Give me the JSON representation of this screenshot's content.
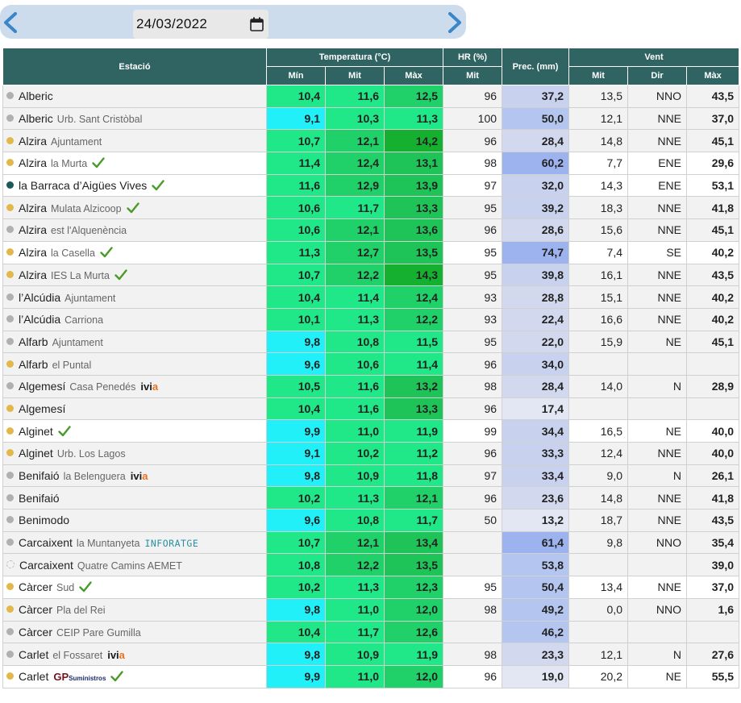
{
  "date_nav": {
    "date": "24/03/2022",
    "prev_icon": "chevron-left-icon",
    "next_icon": "chevron-right-icon",
    "calendar_icon": "calendar-icon"
  },
  "headers": {
    "station": "Estació",
    "temperature": "Temperatura (°C)",
    "hr": "HR (%)",
    "prec": "Prec. (mm)",
    "wind": "Vent",
    "t_min": "Mín",
    "t_mit": "Mit",
    "t_max": "Màx",
    "hr_mit": "Mit",
    "w_mit": "Mit",
    "w_dir": "Dir",
    "w_max": "Màx"
  },
  "colors": {
    "header_bg": "#2f6462",
    "dot_gray": "#b0b0b0",
    "dot_orange": "#e2b84a",
    "dot_dark": "#1a5a5a",
    "check": "#4a9a2a"
  },
  "rows": [
    {
      "name": "Alberic",
      "sub": "",
      "dot": "gray",
      "badge": "",
      "min": "10,4",
      "mit": "11,6",
      "max": "12,5",
      "hr": "96",
      "prec": "37,2",
      "wmit": "13,5",
      "wdir": "NNO",
      "wmax": "43,5",
      "bg": "alt"
    },
    {
      "name": "Alberic",
      "sub": "Urb. Sant Cristòbal",
      "dot": "gray",
      "badge": "",
      "min": "9,1",
      "mit": "10,3",
      "max": "11,3",
      "hr": "100",
      "prec": "50,0",
      "wmit": "12,1",
      "wdir": "NNE",
      "wmax": "37,0",
      "bg": "alt"
    },
    {
      "name": "Alzira",
      "sub": "Ajuntament",
      "dot": "orange",
      "badge": "",
      "min": "10,7",
      "mit": "12,1",
      "max": "14,2",
      "hr": "96",
      "prec": "28,4",
      "wmit": "14,8",
      "wdir": "NNE",
      "wmax": "45,1",
      "bg": "alt"
    },
    {
      "name": "Alzira",
      "sub": "la Murta",
      "dot": "orange",
      "badge": "check",
      "min": "11,4",
      "mit": "12,4",
      "max": "13,1",
      "hr": "98",
      "prec": "60,2",
      "wmit": "7,7",
      "wdir": "ENE",
      "wmax": "29,6",
      "bg": "sel"
    },
    {
      "name": "la Barraca d’Aigües Vives",
      "sub": "",
      "dot": "dark",
      "badge": "check",
      "min": "11,6",
      "mit": "12,9",
      "max": "13,9",
      "hr": "97",
      "prec": "32,0",
      "wmit": "14,3",
      "wdir": "ENE",
      "wmax": "53,1",
      "bg": "sel"
    },
    {
      "name": "Alzira",
      "sub": "Mulata Alzicoop",
      "dot": "orange",
      "badge": "check",
      "min": "10,6",
      "mit": "11,7",
      "max": "13,3",
      "hr": "95",
      "prec": "39,2",
      "wmit": "18,3",
      "wdir": "NNE",
      "wmax": "41,8",
      "bg": "alt"
    },
    {
      "name": "Alzira",
      "sub": "est l'Alquenència",
      "dot": "gray",
      "badge": "",
      "min": "10,6",
      "mit": "12,1",
      "max": "13,6",
      "hr": "96",
      "prec": "28,6",
      "wmit": "15,6",
      "wdir": "NNE",
      "wmax": "45,1",
      "bg": "alt"
    },
    {
      "name": "Alzira",
      "sub": "la Casella",
      "dot": "orange",
      "badge": "check",
      "min": "11,3",
      "mit": "12,7",
      "max": "13,5",
      "hr": "95",
      "prec": "74,7",
      "wmit": "7,4",
      "wdir": "SE",
      "wmax": "40,2",
      "bg": "sel"
    },
    {
      "name": "Alzira",
      "sub": "IES La Murta",
      "dot": "orange",
      "badge": "check",
      "min": "10,7",
      "mit": "12,2",
      "max": "14,3",
      "hr": "95",
      "prec": "39,8",
      "wmit": "16,1",
      "wdir": "NNE",
      "wmax": "43,5",
      "bg": "alt"
    },
    {
      "name": "l’Alcúdia",
      "sub": "Ajuntament",
      "dot": "gray",
      "badge": "",
      "min": "10,4",
      "mit": "11,4",
      "max": "12,4",
      "hr": "93",
      "prec": "28,8",
      "wmit": "15,1",
      "wdir": "NNE",
      "wmax": "40,2",
      "bg": "alt"
    },
    {
      "name": "l’Alcúdia",
      "sub": "Carriona",
      "dot": "gray",
      "badge": "",
      "min": "10,1",
      "mit": "11,3",
      "max": "12,2",
      "hr": "93",
      "prec": "22,4",
      "wmit": "16,6",
      "wdir": "NNE",
      "wmax": "40,2",
      "bg": "alt"
    },
    {
      "name": "Alfarb",
      "sub": "Ajuntament",
      "dot": "gray",
      "badge": "",
      "min": "9,8",
      "mit": "10,8",
      "max": "11,5",
      "hr": "95",
      "prec": "22,0",
      "wmit": "15,9",
      "wdir": "NE",
      "wmax": "45,1",
      "bg": "alt"
    },
    {
      "name": "Alfarb",
      "sub": "el Puntal",
      "dot": "orange",
      "badge": "",
      "min": "9,6",
      "mit": "10,6",
      "max": "11,4",
      "hr": "96",
      "prec": "34,0",
      "wmit": "",
      "wdir": "",
      "wmax": "",
      "bg": "alt"
    },
    {
      "name": "Algemesí",
      "sub": "Casa Penedés",
      "dot": "gray",
      "badge": "ivia",
      "min": "10,5",
      "mit": "11,6",
      "max": "13,2",
      "hr": "98",
      "prec": "28,4",
      "wmit": "14,0",
      "wdir": "N",
      "wmax": "28,9",
      "bg": "alt"
    },
    {
      "name": "Algemesí",
      "sub": "",
      "dot": "orange",
      "badge": "",
      "min": "10,4",
      "mit": "11,6",
      "max": "13,3",
      "hr": "96",
      "prec": "17,4",
      "wmit": "",
      "wdir": "",
      "wmax": "",
      "bg": "alt"
    },
    {
      "name": "Alginet",
      "sub": "",
      "dot": "orange",
      "badge": "check",
      "min": "9,9",
      "mit": "11,0",
      "max": "11,9",
      "hr": "99",
      "prec": "34,4",
      "wmit": "16,5",
      "wdir": "NE",
      "wmax": "40,0",
      "bg": "sel"
    },
    {
      "name": "Alginet",
      "sub": "Urb. Los Lagos",
      "dot": "orange",
      "badge": "",
      "min": "9,1",
      "mit": "10,2",
      "max": "11,2",
      "hr": "96",
      "prec": "33,3",
      "wmit": "12,4",
      "wdir": "NNE",
      "wmax": "40,0",
      "bg": "alt"
    },
    {
      "name": "Benifaió",
      "sub": "la Belenguera",
      "dot": "gray",
      "badge": "ivia",
      "min": "9,8",
      "mit": "10,9",
      "max": "11,8",
      "hr": "97",
      "prec": "33,4",
      "wmit": "9,0",
      "wdir": "N",
      "wmax": "26,1",
      "bg": "alt"
    },
    {
      "name": "Benifaió",
      "sub": "",
      "dot": "gray",
      "badge": "",
      "min": "10,2",
      "mit": "11,3",
      "max": "12,1",
      "hr": "96",
      "prec": "23,6",
      "wmit": "14,8",
      "wdir": "NNE",
      "wmax": "41,8",
      "bg": "alt"
    },
    {
      "name": "Benimodo",
      "sub": "",
      "dot": "gray",
      "badge": "",
      "min": "9,6",
      "mit": "10,8",
      "max": "11,7",
      "hr": "50",
      "prec": "13,2",
      "wmit": "18,7",
      "wdir": "NNE",
      "wmax": "43,5",
      "bg": "alt"
    },
    {
      "name": "Carcaixent",
      "sub": "la Muntanyeta",
      "dot": "gray",
      "badge": "inforatge",
      "min": "10,7",
      "mit": "12,1",
      "max": "13,4",
      "hr": "",
      "prec": "61,4",
      "wmit": "9,8",
      "wdir": "NNO",
      "wmax": "35,4",
      "bg": "alt"
    },
    {
      "name": "Carcaixent",
      "sub": "Quatre Camins AEMET",
      "dot": "dashed",
      "badge": "",
      "min": "10,8",
      "mit": "12,2",
      "max": "13,5",
      "hr": "",
      "prec": "53,8",
      "wmit": "",
      "wdir": "",
      "wmax": "39,0",
      "bg": "alt"
    },
    {
      "name": "Càrcer",
      "sub": "Sud",
      "dot": "orange",
      "badge": "check",
      "min": "10,2",
      "mit": "11,3",
      "max": "12,3",
      "hr": "95",
      "prec": "50,4",
      "wmit": "13,4",
      "wdir": "NNE",
      "wmax": "37,0",
      "bg": "sel"
    },
    {
      "name": "Càrcer",
      "sub": "Pla del Rei",
      "dot": "orange",
      "badge": "",
      "min": "9,8",
      "mit": "11,0",
      "max": "12,0",
      "hr": "98",
      "prec": "49,2",
      "wmit": "0,0",
      "wdir": "NNO",
      "wmax": "1,6",
      "bg": "alt"
    },
    {
      "name": "Càrcer",
      "sub": "CEIP Pare Gumilla",
      "dot": "gray",
      "badge": "",
      "min": "10,4",
      "mit": "11,7",
      "max": "12,6",
      "hr": "",
      "prec": "46,2",
      "wmit": "",
      "wdir": "",
      "wmax": "",
      "bg": "alt"
    },
    {
      "name": "Carlet",
      "sub": "el Fossaret",
      "dot": "gray",
      "badge": "ivia",
      "min": "9,8",
      "mit": "10,9",
      "max": "11,9",
      "hr": "98",
      "prec": "23,3",
      "wmit": "12,1",
      "wdir": "N",
      "wmax": "27,6",
      "bg": "alt"
    },
    {
      "name": "Carlet",
      "sub": "",
      "dot": "orange",
      "badge": "gp",
      "min": "9,9",
      "mit": "11,0",
      "max": "12,0",
      "hr": "96",
      "prec": "19,0",
      "wmit": "20,2",
      "wdir": "NE",
      "wmax": "55,5",
      "bg": "sel"
    }
  ],
  "badges": {
    "ivia_a": "ivi",
    "ivia_b": "a",
    "inforatge": "INFORATGE",
    "gp_a": "GP",
    "gp_b": "Suministros"
  }
}
